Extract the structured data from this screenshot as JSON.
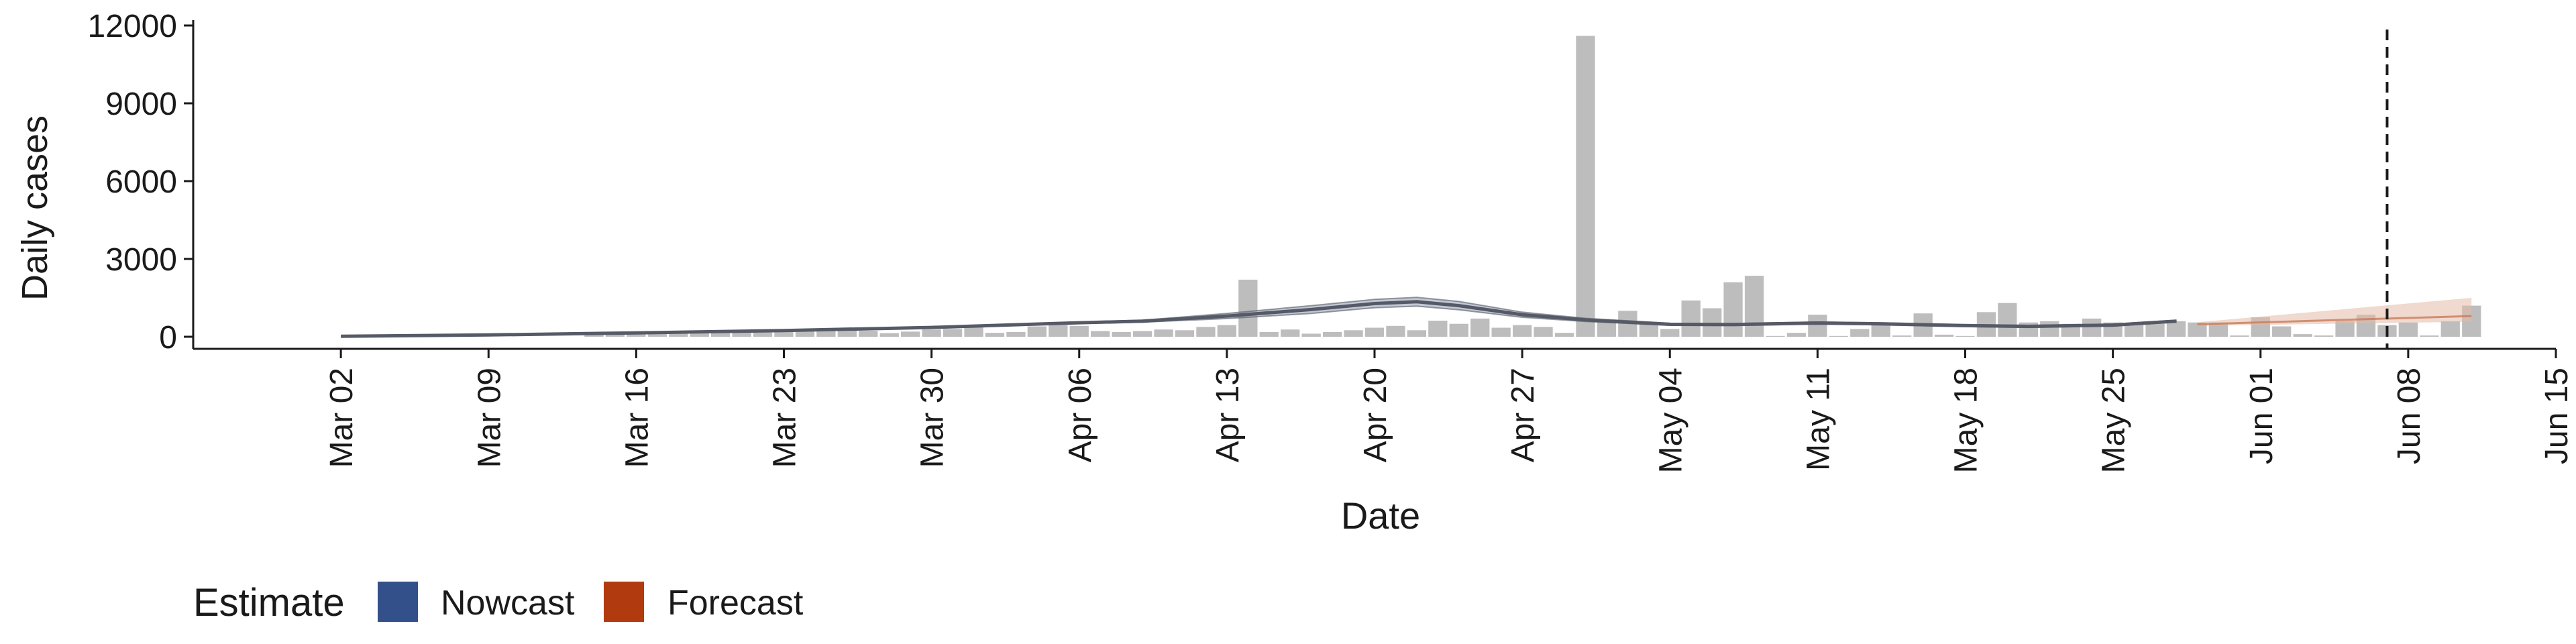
{
  "chart_data": {
    "type": "bar",
    "xlabel": "Date",
    "ylabel": "Daily cases",
    "ylim": [
      0,
      12000
    ],
    "yticks": [
      0,
      3000,
      6000,
      9000,
      12000
    ],
    "ytick_labels": [
      "0",
      "3000",
      "6000",
      "9000",
      "12000"
    ],
    "xlim": [
      "2020-02-24",
      "2020-06-15"
    ],
    "xticks": [
      "2020-03-02",
      "2020-03-09",
      "2020-03-16",
      "2020-03-23",
      "2020-03-30",
      "2020-04-06",
      "2020-04-13",
      "2020-04-20",
      "2020-04-27",
      "2020-05-04",
      "2020-05-11",
      "2020-05-18",
      "2020-05-25",
      "2020-06-01",
      "2020-06-08",
      "2020-06-15"
    ],
    "xtick_labels": [
      "Mar 02",
      "Mar 09",
      "Mar 16",
      "Mar 23",
      "Mar 30",
      "Apr 06",
      "Apr 13",
      "Apr 20",
      "Apr 27",
      "May 04",
      "May 11",
      "May 18",
      "May 25",
      "Jun 01",
      "Jun 08",
      "Jun 15"
    ],
    "cases": {
      "start": "2020-03-14",
      "values": [
        80,
        90,
        100,
        110,
        120,
        130,
        150,
        170,
        190,
        250,
        280,
        300,
        310,
        230,
        140,
        200,
        280,
        300,
        380,
        150,
        180,
        400,
        450,
        420,
        220,
        180,
        220,
        280,
        250,
        380,
        450,
        2200,
        180,
        280,
        120,
        180,
        250,
        350,
        420,
        250,
        620,
        500,
        700,
        350,
        450,
        380,
        150,
        11600,
        600,
        1000,
        520,
        300,
        1400,
        1100,
        2100,
        2350,
        30,
        150,
        850,
        30,
        300,
        480,
        50,
        900,
        80,
        30,
        950,
        1300,
        550,
        600,
        500,
        700,
        550,
        500,
        500,
        600,
        550,
        550,
        50,
        750,
        400,
        100,
        50,
        600,
        850,
        450,
        550,
        50,
        600,
        1200
      ]
    },
    "trend_end": "2020-05-28",
    "trend": [
      [
        "2020-03-02",
        20
      ],
      [
        "2020-03-09",
        70
      ],
      [
        "2020-03-16",
        150
      ],
      [
        "2020-03-23",
        240
      ],
      [
        "2020-03-30",
        360
      ],
      [
        "2020-04-06",
        540
      ],
      [
        "2020-04-09",
        600
      ],
      [
        "2020-04-13",
        800
      ],
      [
        "2020-04-17",
        1050
      ],
      [
        "2020-04-20",
        1280
      ],
      [
        "2020-04-22",
        1350
      ],
      [
        "2020-04-24",
        1200
      ],
      [
        "2020-04-27",
        850
      ],
      [
        "2020-04-30",
        650
      ],
      [
        "2020-05-04",
        480
      ],
      [
        "2020-05-07",
        470
      ],
      [
        "2020-05-11",
        530
      ],
      [
        "2020-05-14",
        500
      ],
      [
        "2020-05-18",
        430
      ],
      [
        "2020-05-21",
        400
      ],
      [
        "2020-05-25",
        450
      ],
      [
        "2020-05-28",
        600
      ]
    ],
    "trend_band_halfwidth": [
      0,
      5,
      10,
      15,
      20,
      30,
      40,
      100,
      150,
      160,
      170,
      160,
      100,
      60,
      40,
      40,
      40,
      40,
      40,
      40,
      40,
      40
    ],
    "forecast": {
      "start": "2020-05-29",
      "end": "2020-06-11",
      "median_start": 480,
      "median_end": 800,
      "lower_start": 420,
      "lower_end": 580,
      "upper_start": 560,
      "upper_end": 1500
    },
    "vline_date": "2020-06-07",
    "legend": {
      "title": "Estimate",
      "items": [
        {
          "label": "Nowcast",
          "color": "#34508a"
        },
        {
          "label": "Forecast",
          "color": "#b23a0f"
        }
      ]
    },
    "colors": {
      "bars": "#bdbdbd",
      "trend_line": "#555a66",
      "trend_band": "#9aa3b8",
      "forecast_band": "#e3b9a6",
      "axis": "#1a1a1a"
    }
  }
}
